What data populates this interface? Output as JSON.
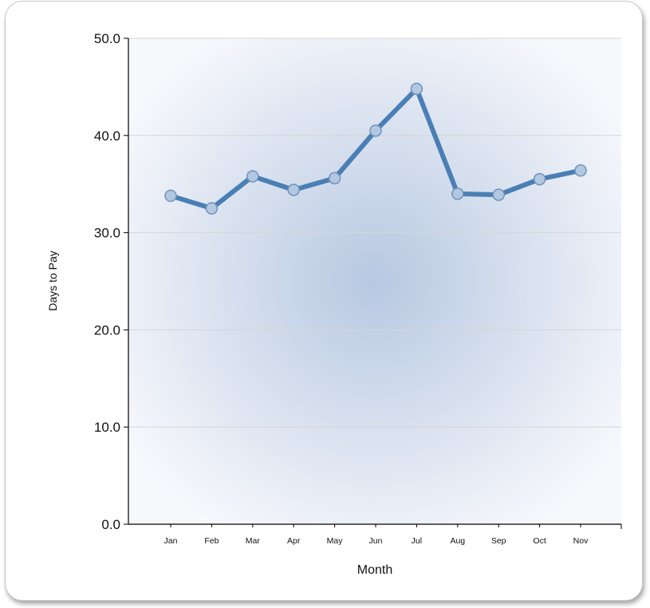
{
  "chart_data": {
    "type": "line",
    "title": "",
    "xlabel": "Month",
    "ylabel": "Days to Pay",
    "categories": [
      "Jan",
      "Feb",
      "Mar",
      "Apr",
      "May",
      "Jun",
      "Jul",
      "Aug",
      "Sep",
      "Oct",
      "Nov"
    ],
    "series": [
      {
        "values": [
          33.8,
          32.5,
          35.8,
          34.4,
          35.6,
          40.5,
          44.8,
          34.0,
          33.9,
          35.5,
          36.4
        ]
      }
    ],
    "ylim": [
      0,
      50
    ],
    "yticks": [
      "0.0",
      "10.0",
      "20.0",
      "30.0",
      "40.0",
      "50.0"
    ],
    "grid": true,
    "legend": "none",
    "colors": {
      "line": "#4a7fb5",
      "marker_fill": "#b3c8e0",
      "marker_stroke": "#6f93bd",
      "plot_center": "#b7c8e1",
      "plot_edge": "#f7f8fc",
      "grid": "#d6d6d6"
    }
  }
}
